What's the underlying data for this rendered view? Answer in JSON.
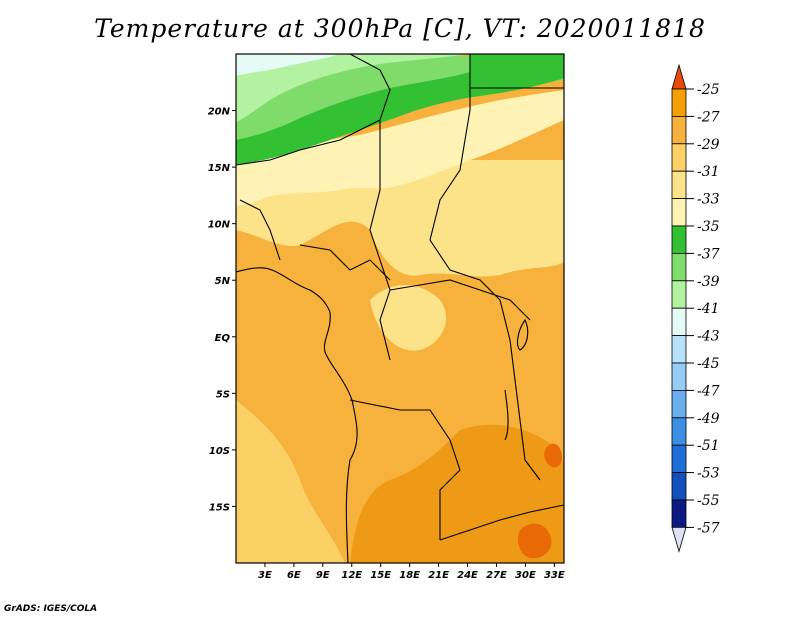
{
  "title": "Temperature at 300hPa [C], VT: 2020011818",
  "footer": "GrADS: IGES/COLA",
  "map": {
    "lon_range": [
      0,
      34
    ],
    "lat_range": [
      -20,
      25
    ],
    "lon_ticks": [
      {
        "value": 3,
        "label": "3E"
      },
      {
        "value": 6,
        "label": "6E"
      },
      {
        "value": 9,
        "label": "9E"
      },
      {
        "value": 12,
        "label": "12E"
      },
      {
        "value": 15,
        "label": "15E"
      },
      {
        "value": 18,
        "label": "18E"
      },
      {
        "value": 21,
        "label": "21E"
      },
      {
        "value": 24,
        "label": "24E"
      },
      {
        "value": 27,
        "label": "27E"
      },
      {
        "value": 30,
        "label": "30E"
      },
      {
        "value": 33,
        "label": "33E"
      }
    ],
    "lat_ticks": [
      {
        "value": 20,
        "label": "20N"
      },
      {
        "value": 15,
        "label": "15N"
      },
      {
        "value": 10,
        "label": "10N"
      },
      {
        "value": 5,
        "label": "5N"
      },
      {
        "value": 0,
        "label": "EQ"
      },
      {
        "value": -5,
        "label": "5S"
      },
      {
        "value": -10,
        "label": "10S"
      },
      {
        "value": -15,
        "label": "15S"
      }
    ],
    "field_regions": [
      {
        "name": "base",
        "level": -29,
        "color": "#f6b23c"
      },
      {
        "name": "west-coast-warm",
        "level": -31,
        "color": "#fbd166"
      },
      {
        "name": "sahel-cool",
        "level": -33,
        "color": "#fce38a"
      },
      {
        "name": "sahara-cool",
        "level": -35,
        "color": "#fef3b5"
      },
      {
        "name": "jet-band",
        "level": -37,
        "color": "#33c033"
      },
      {
        "name": "jet-band-outer",
        "level": -39,
        "color": "#7fdc6a"
      },
      {
        "name": "north-edge",
        "level": -41,
        "color": "#b3f2a0"
      },
      {
        "name": "north-corner",
        "level": -43,
        "color": "#e5fbf6"
      },
      {
        "name": "south-warm",
        "level": -27,
        "color": "#ee9a16"
      },
      {
        "name": "south-hot",
        "level": -25,
        "color": "#e86a06"
      }
    ]
  },
  "colorbar": {
    "levels": [
      {
        "label": "-25",
        "color": "#e86a06"
      },
      {
        "label": "-27",
        "color": "#f3a008"
      },
      {
        "label": "-29",
        "color": "#f6b23c"
      },
      {
        "label": "-31",
        "color": "#fbd166"
      },
      {
        "label": "-33",
        "color": "#fce38a"
      },
      {
        "label": "-35",
        "color": "#fef3b5"
      },
      {
        "label": "-37",
        "color": "#33c033"
      },
      {
        "label": "-39",
        "color": "#7fdc6a"
      },
      {
        "label": "-41",
        "color": "#b3f2a0"
      },
      {
        "label": "-43",
        "color": "#e5fbf6"
      },
      {
        "label": "-45",
        "color": "#b8e2fa"
      },
      {
        "label": "-47",
        "color": "#96ccf5"
      },
      {
        "label": "-49",
        "color": "#6aaeee"
      },
      {
        "label": "-51",
        "color": "#3d8fe6"
      },
      {
        "label": "-53",
        "color": "#1f6fd8"
      },
      {
        "label": "-55",
        "color": "#1150bd"
      },
      {
        "label": "-57",
        "color": "#0a1a80"
      }
    ],
    "top_arrow_color": "#e84a0a",
    "bottom_arrow_color": "#e0e0f6"
  }
}
